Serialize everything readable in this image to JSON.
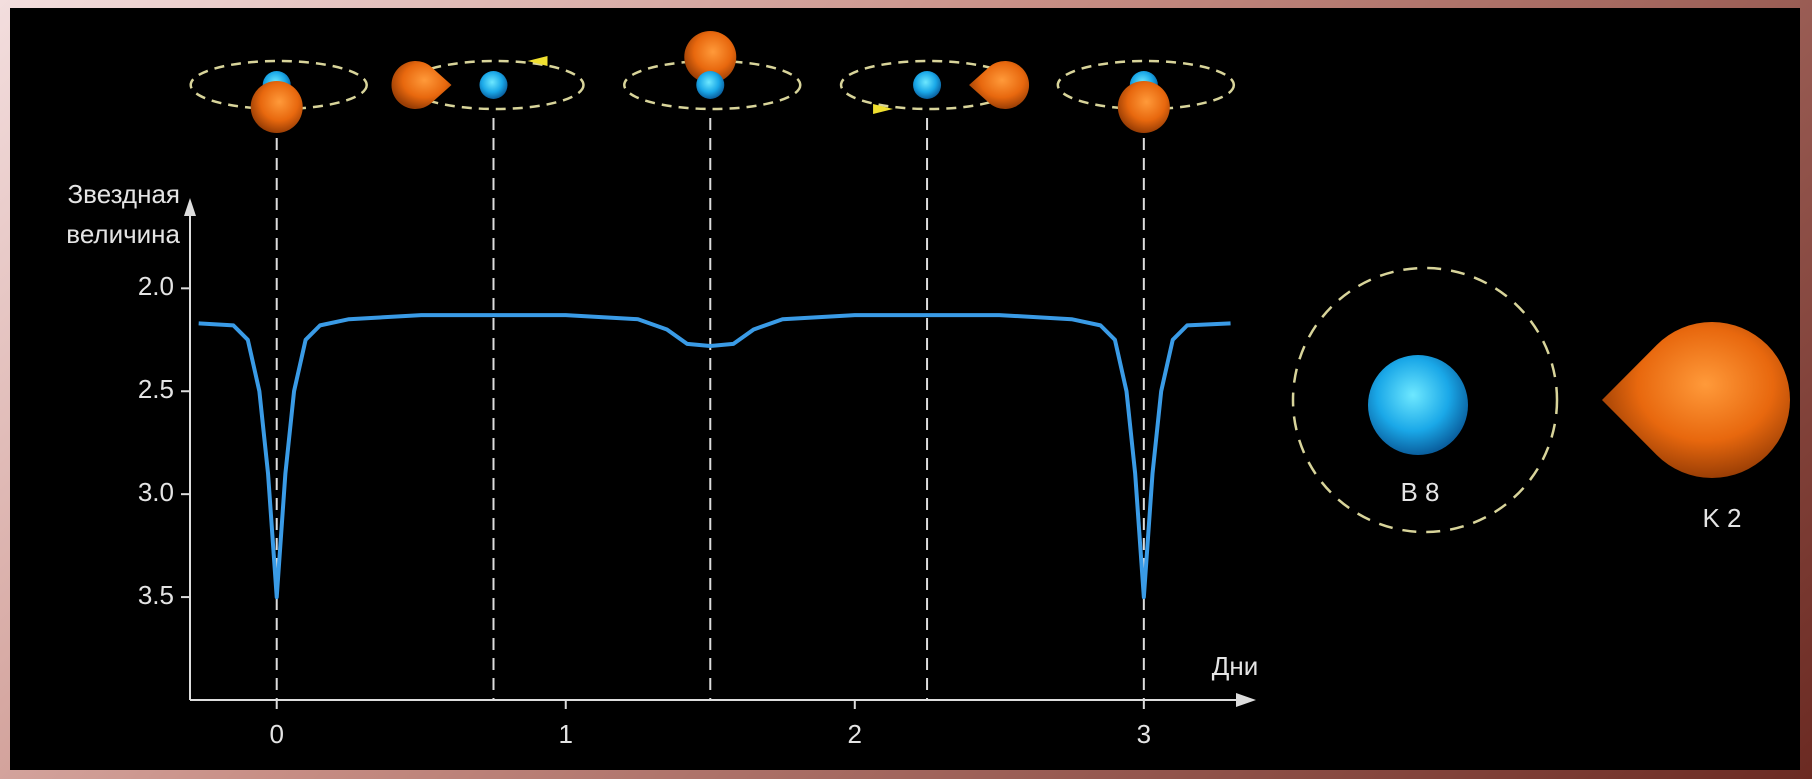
{
  "chart_data": {
    "type": "line",
    "ylabel_lines": [
      "Звездная",
      "величина"
    ],
    "xlabel": "Дни",
    "x": [
      -0.27,
      -0.15,
      -0.1,
      -0.06,
      -0.03,
      0,
      0.03,
      0.06,
      0.1,
      0.15,
      0.25,
      0.5,
      0.75,
      1.0,
      1.25,
      1.35,
      1.42,
      1.5,
      1.58,
      1.65,
      1.75,
      2.0,
      2.25,
      2.5,
      2.75,
      2.85,
      2.9,
      2.94,
      2.97,
      3.0,
      3.03,
      3.06,
      3.1,
      3.15,
      3.3
    ],
    "values": [
      2.17,
      2.18,
      2.25,
      2.5,
      2.9,
      3.5,
      2.9,
      2.5,
      2.25,
      2.18,
      2.15,
      2.13,
      2.13,
      2.13,
      2.15,
      2.2,
      2.27,
      2.28,
      2.27,
      2.2,
      2.15,
      2.13,
      2.13,
      2.13,
      2.15,
      2.18,
      2.25,
      2.5,
      2.9,
      3.5,
      2.9,
      2.5,
      2.25,
      2.18,
      2.17
    ],
    "color": "#3a9be6",
    "xlim": [
      -0.3,
      3.35
    ],
    "xticks": [
      0,
      1,
      2,
      3
    ],
    "ylim": [
      1.6,
      4.0
    ],
    "y_inverted": true,
    "yticks": [
      {
        "value": 2.0,
        "label": "2.0"
      },
      {
        "value": 2.5,
        "label": "2.5"
      },
      {
        "value": 3.0,
        "label": "3.0"
      },
      {
        "value": 3.5,
        "label": "3.5"
      }
    ],
    "markers": [
      0,
      0.75,
      1.5,
      2.25,
      3
    ],
    "stars": [
      "B 8",
      "K 2"
    ]
  }
}
